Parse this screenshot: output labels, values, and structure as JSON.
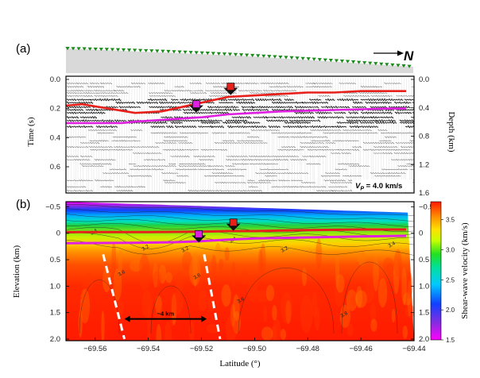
{
  "panel_labels": {
    "a": "(a)",
    "b": "(b)"
  },
  "north_arrow": {
    "letter": "N"
  },
  "chart_data": [
    {
      "id": "a",
      "type": "seismic-section",
      "ylabel_left": "Time (s)",
      "ylabel_right": "Depth (km)",
      "yticks_left": [
        "0.0",
        "0.2",
        "0.4",
        "0.6"
      ],
      "yticks_right": [
        "0.0",
        "0.4",
        "0.8",
        "1.2",
        "1.6"
      ],
      "ylim_time_s": [
        0.0,
        0.78
      ],
      "velocity_annotation": {
        "prefix": "V",
        "sub": "P",
        "text": " = 4.0 km/s"
      },
      "horizons": [
        {
          "name": "red-horizon",
          "color": "#e8201c",
          "x": [
            -69.571,
            -69.565,
            -69.555,
            -69.545,
            -69.535,
            -69.53,
            -69.52,
            -69.51,
            -69.5,
            -69.49,
            -69.48,
            -69.47,
            -69.46,
            -69.45,
            -69.443
          ],
          "y": [
            0.18,
            0.17,
            0.2,
            0.23,
            0.22,
            0.2,
            0.16,
            0.12,
            0.11,
            0.1,
            0.09,
            0.09,
            0.08,
            0.08,
            0.08
          ]
        },
        {
          "name": "magenta-horizon",
          "color": "#e020e0",
          "x": [
            -69.571,
            -69.56,
            -69.55,
            -69.545,
            -69.52,
            -69.51,
            -69.5,
            -69.49,
            -69.47,
            -69.45,
            -69.443
          ],
          "y": [
            0.3,
            0.3,
            0.3,
            0.29,
            0.26,
            0.24,
            0.23,
            0.22,
            0.21,
            0.2,
            0.2
          ]
        }
      ],
      "markers": [
        {
          "name": "red-marker",
          "x": -69.509,
          "y": 0.08
        },
        {
          "name": "magenta-marker",
          "x": -69.522,
          "y": 0.2
        }
      ]
    },
    {
      "id": "b",
      "type": "heatmap",
      "xlabel": "Latitude (°)",
      "ylabel": "Elevation (km)",
      "xlim": [
        -69.571,
        -69.44
      ],
      "ylim": [
        -0.55,
        2.0
      ],
      "xticks": [
        -69.56,
        -69.54,
        -69.52,
        -69.5,
        -69.48,
        -69.46,
        -69.44
      ],
      "xtick_labels": [
        "−69.56",
        "−69.54",
        "−69.52",
        "−69.50",
        "−69.48",
        "−69.46",
        "−69.44"
      ],
      "yticks": [
        -0.5,
        0,
        0.5,
        1.0,
        1.5,
        2.0
      ],
      "ytick_labels": [
        "−0.5",
        "0",
        "0.5",
        "1.0",
        "1.5",
        "2.0"
      ],
      "colorbar": {
        "label": "Shear-wave velocity (km/s)",
        "min": 1.5,
        "max": 3.8,
        "ticks": [
          1.5,
          2.0,
          2.5,
          3.0,
          3.5
        ],
        "tick_labels": [
          "1.5",
          "2.0",
          "2.5",
          "3.0",
          "3.5"
        ]
      },
      "scale_bar": {
        "label": "~4 km",
        "x": [
          -69.549,
          -69.518
        ],
        "y": 1.62
      },
      "faults": [
        {
          "name": "fault-west",
          "x": [
            -69.557,
            -69.549
          ],
          "y": [
            0.4,
            2.0
          ]
        },
        {
          "name": "fault-east",
          "x": [
            -69.519,
            -69.513
          ],
          "y": [
            0.4,
            2.0
          ]
        }
      ],
      "horizons": [
        {
          "name": "red-horizon",
          "color": "#e8201c",
          "x": [
            -69.571,
            -69.54,
            -69.52,
            -69.51,
            -69.5,
            -69.48,
            -69.46,
            -69.443
          ],
          "y": [
            -0.02,
            -0.02,
            -0.03,
            -0.04,
            -0.04,
            -0.06,
            -0.07,
            -0.07
          ]
        },
        {
          "name": "magenta-horizon",
          "color": "#e020e0",
          "x": [
            -69.571,
            -69.545,
            -69.53,
            -69.52,
            -69.51,
            -69.5,
            -69.48,
            -69.46,
            -69.443
          ],
          "y": [
            0.19,
            0.18,
            0.17,
            0.15,
            0.12,
            0.1,
            0.08,
            0.06,
            0.05
          ]
        }
      ],
      "contour_labels": [
        "3.4",
        "3.2",
        "3.2",
        "3.4",
        "3.6",
        "3.6",
        "3.2",
        "3.4",
        "3.6",
        "3.8"
      ],
      "markers": [
        {
          "name": "red-marker",
          "x": -69.508,
          "y": -0.12
        },
        {
          "name": "magenta-marker",
          "x": -69.521,
          "y": 0.1
        }
      ]
    }
  ],
  "colors": {
    "red": "#e8201c",
    "magenta": "#e020e0",
    "topo_fill": "#d9d9d9",
    "station": "#1a8a1a"
  }
}
